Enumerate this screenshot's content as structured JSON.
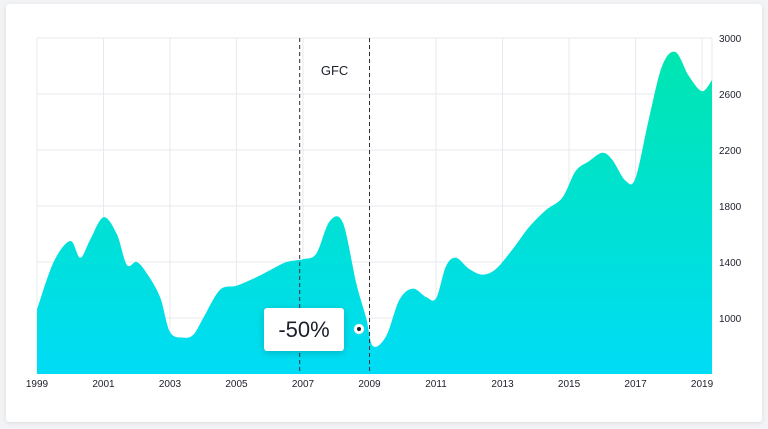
{
  "chart_data": {
    "type": "area",
    "x": [
      1999.0,
      1999.5,
      2000.0,
      2000.3,
      2000.6,
      2001.0,
      2001.4,
      2001.7,
      2002.0,
      2002.3,
      2002.7,
      2003.0,
      2003.4,
      2003.7,
      2004.0,
      2004.5,
      2005.0,
      2005.5,
      2006.0,
      2006.5,
      2007.0,
      2007.4,
      2007.8,
      2008.2,
      2008.6,
      2008.9,
      2009.1,
      2009.5,
      2009.9,
      2010.3,
      2010.7,
      2011.0,
      2011.3,
      2011.6,
      2012.0,
      2012.4,
      2012.8,
      2013.3,
      2013.8,
      2014.3,
      2014.8,
      2015.2,
      2015.6,
      2016.0,
      2016.3,
      2016.7,
      2017.0,
      2017.4,
      2017.8,
      2018.2,
      2018.6,
      2019.0,
      2019.3
    ],
    "values": [
      1060,
      1400,
      1550,
      1430,
      1560,
      1720,
      1600,
      1380,
      1400,
      1320,
      1150,
      900,
      860,
      880,
      1000,
      1200,
      1230,
      1280,
      1340,
      1400,
      1420,
      1460,
      1690,
      1680,
      1250,
      1000,
      800,
      870,
      1130,
      1210,
      1150,
      1140,
      1370,
      1430,
      1350,
      1310,
      1350,
      1490,
      1650,
      1770,
      1860,
      2050,
      2120,
      2180,
      2130,
      1980,
      2000,
      2420,
      2800,
      2900,
      2730,
      2620,
      2700
    ],
    "x_ticks": [
      "1999",
      "2001",
      "2003",
      "2005",
      "2007",
      "2009",
      "2011",
      "2013",
      "2015",
      "2017",
      "2019"
    ],
    "y_ticks": [
      "1000",
      "1400",
      "1800",
      "2200",
      "2600",
      "3000"
    ],
    "ylim": [
      600,
      3000
    ],
    "xlim": [
      1999,
      2019.3
    ],
    "annotation": {
      "label": "GFC",
      "start": 2006.9,
      "end": 2009.0
    },
    "callout": {
      "text": "-50%"
    },
    "grid": true,
    "colors": {
      "top": "#00e6b0",
      "bottom": "#00dcf5"
    }
  }
}
